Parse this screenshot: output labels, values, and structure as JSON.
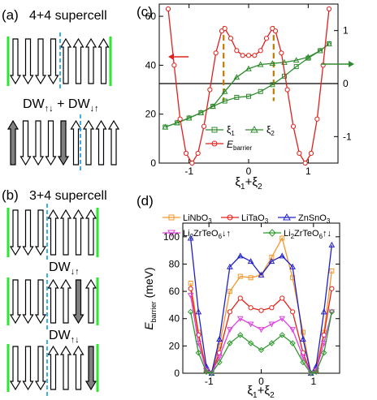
{
  "panel_a": {
    "tag": "(a)",
    "title": "4+4 supercell",
    "dw_label_1": "DW",
    "dw_sub_1": "↑↓",
    "dw_plus": " + DW",
    "dw_sub_2": "↓↑"
  },
  "panel_b": {
    "tag": "(b)",
    "title": "3+4 supercell",
    "dw_label_1": "DW",
    "dw_sub_1": "↓↑",
    "dw_label_2": "DW",
    "dw_sub_2": "↑↓"
  },
  "colors": {
    "xi1": "#2e8b2e",
    "xi2": "#2e8b2e",
    "ebarrier": "#e0201c",
    "domain_wall_green": "#2ee62e",
    "domain_wall_blue": "#2aa6e6",
    "grey_arrow": "#808080",
    "dashed_orange": "#c07a00",
    "LiNbO3": "#f5962a",
    "LiTaO3": "#e2231a",
    "ZnSnO3": "#2020c8",
    "Li2ZrTeO6_du": "#e040e0",
    "Li2ZrTeO6_ud": "#2e9a2e"
  },
  "chart_data": [
    {
      "panel": "(c)",
      "type": "line",
      "xlabel_main": "ξ",
      "xlabel_sub1": "1",
      "xlabel_plus": "+ξ",
      "xlabel_sub2": "2",
      "xlim": [
        -1.5,
        1.5
      ],
      "ylim_left": [
        0,
        65
      ],
      "ylim_right": [
        -1.5,
        1.5
      ],
      "x_ticks": [
        "-1",
        "0",
        "1"
      ],
      "y_ticks_left": [
        "0",
        "20",
        "40",
        "60"
      ],
      "y_ticks_right": [
        "-1",
        "0",
        "1"
      ],
      "legend_placement": "bottom-left",
      "series": [
        {
          "name": "ξ",
          "name_sub": "1",
          "marker": "square",
          "axis": "right",
          "x": [
            -1.4,
            -1.2,
            -1.0,
            -0.8,
            -0.6,
            -0.4,
            -0.2,
            0.0,
            0.2,
            0.4,
            0.6,
            0.8,
            1.0,
            1.2,
            1.35
          ],
          "y": [
            -0.82,
            -0.74,
            -0.65,
            -0.55,
            -0.43,
            -0.33,
            -0.26,
            -0.24,
            -0.15,
            -0.02,
            0.14,
            0.32,
            0.48,
            0.62,
            0.75
          ]
        },
        {
          "name": "ξ",
          "name_sub": "2",
          "marker": "triangle",
          "axis": "right",
          "x": [
            -1.4,
            -1.2,
            -1.0,
            -0.8,
            -0.6,
            -0.4,
            -0.2,
            0.0,
            0.2,
            0.4,
            0.6,
            0.8,
            1.0,
            1.2,
            1.35
          ],
          "y": [
            -0.82,
            -0.74,
            -0.65,
            -0.55,
            -0.43,
            -0.15,
            0.12,
            0.28,
            0.36,
            0.38,
            0.4,
            0.44,
            0.5,
            0.62,
            0.75
          ]
        },
        {
          "name": "E",
          "name_sub": "barrier",
          "marker": "circle",
          "axis": "left",
          "x": [
            -1.35,
            -1.25,
            -1.15,
            -1.05,
            -0.95,
            -0.85,
            -0.75,
            -0.65,
            -0.55,
            -0.45,
            -0.4,
            -0.3,
            -0.2,
            -0.1,
            0.0,
            0.1,
            0.2,
            0.3,
            0.4,
            0.45,
            0.55,
            0.65,
            0.75,
            0.85,
            0.95,
            1.05,
            1.15,
            1.25,
            1.35
          ],
          "y": [
            63,
            40,
            18,
            4,
            0,
            4,
            15,
            30,
            45,
            54,
            55,
            51,
            46,
            44,
            44,
            44,
            46,
            51,
            55,
            54,
            45,
            30,
            15,
            4,
            0,
            4,
            18,
            40,
            63
          ]
        }
      ],
      "dashed_x": [
        -0.42,
        0.42
      ],
      "horizontal_line_right": 0
    },
    {
      "panel": "(d)",
      "type": "line",
      "ylabel_main": "E",
      "ylabel_sub": "barrier",
      "ylabel_unit": " (meV)",
      "xlabel_main": "ξ",
      "xlabel_sub1": "1",
      "xlabel_plus": "+ξ",
      "xlabel_sub2": "2",
      "xlim": [
        -1.5,
        1.5
      ],
      "ylim": [
        0,
        110
      ],
      "x_ticks": [
        "-1",
        "0",
        "1"
      ],
      "y_ticks": [
        "0",
        "20",
        "40",
        "60",
        "80",
        "100"
      ],
      "legend_placement": "top",
      "series": [
        {
          "name": "LiNbO",
          "name_sub": "3",
          "marker": "square",
          "x": [
            -1.35,
            -1.2,
            -1.05,
            -0.95,
            -0.8,
            -0.6,
            -0.4,
            -0.2,
            0.0,
            0.2,
            0.4,
            0.6,
            0.8,
            0.95,
            1.05,
            1.2,
            1.35
          ],
          "y": [
            66,
            30,
            2,
            0,
            20,
            60,
            71,
            70,
            72,
            85,
            99,
            70,
            30,
            0,
            2,
            30,
            75
          ]
        },
        {
          "name": "LiTaO",
          "name_sub": "3",
          "marker": "circle",
          "x": [
            -1.35,
            -1.2,
            -1.05,
            -0.95,
            -0.8,
            -0.6,
            -0.4,
            -0.2,
            0.0,
            0.2,
            0.4,
            0.6,
            0.8,
            0.95,
            1.05,
            1.2,
            1.35
          ],
          "y": [
            62,
            28,
            2,
            0,
            15,
            45,
            55,
            48,
            46,
            48,
            55,
            45,
            15,
            0,
            2,
            28,
            62
          ]
        },
        {
          "name": "ZnSnO",
          "name_sub": "3",
          "marker": "triangle",
          "x": [
            -1.35,
            -1.2,
            -1.05,
            -0.95,
            -0.8,
            -0.6,
            -0.4,
            -0.2,
            0.0,
            0.2,
            0.4,
            0.6,
            0.8,
            0.95,
            1.05,
            1.2,
            1.35
          ],
          "y": [
            99,
            45,
            5,
            0,
            25,
            78,
            86,
            82,
            72,
            82,
            86,
            78,
            25,
            0,
            5,
            45,
            94
          ]
        },
        {
          "name": "Li",
          "name_sub": "2",
          "name_tail": "ZrTeO",
          "name_sub2": "6",
          "name_arrows": "↓↑",
          "marker": "triangle-down",
          "x": [
            -1.35,
            -1.2,
            -1.05,
            -0.95,
            -0.8,
            -0.6,
            -0.4,
            -0.2,
            0.0,
            0.2,
            0.4,
            0.6,
            0.8,
            0.95,
            1.05,
            1.2,
            1.35
          ],
          "y": [
            57,
            22,
            2,
            0,
            12,
            32,
            40,
            36,
            32,
            36,
            40,
            32,
            12,
            0,
            2,
            22,
            45
          ]
        },
        {
          "name": "Li",
          "name_sub": "2",
          "name_tail": "ZrTeO",
          "name_sub2": "6",
          "name_arrows": "↑↓",
          "marker": "diamond",
          "x": [
            -1.35,
            -1.2,
            -1.05,
            -0.95,
            -0.8,
            -0.6,
            -0.4,
            -0.2,
            0.0,
            0.2,
            0.4,
            0.6,
            0.8,
            0.95,
            1.05,
            1.2,
            1.35
          ],
          "y": [
            45,
            15,
            1,
            0,
            8,
            22,
            28,
            22,
            17,
            22,
            28,
            22,
            8,
            0,
            1,
            15,
            45
          ]
        }
      ]
    }
  ]
}
